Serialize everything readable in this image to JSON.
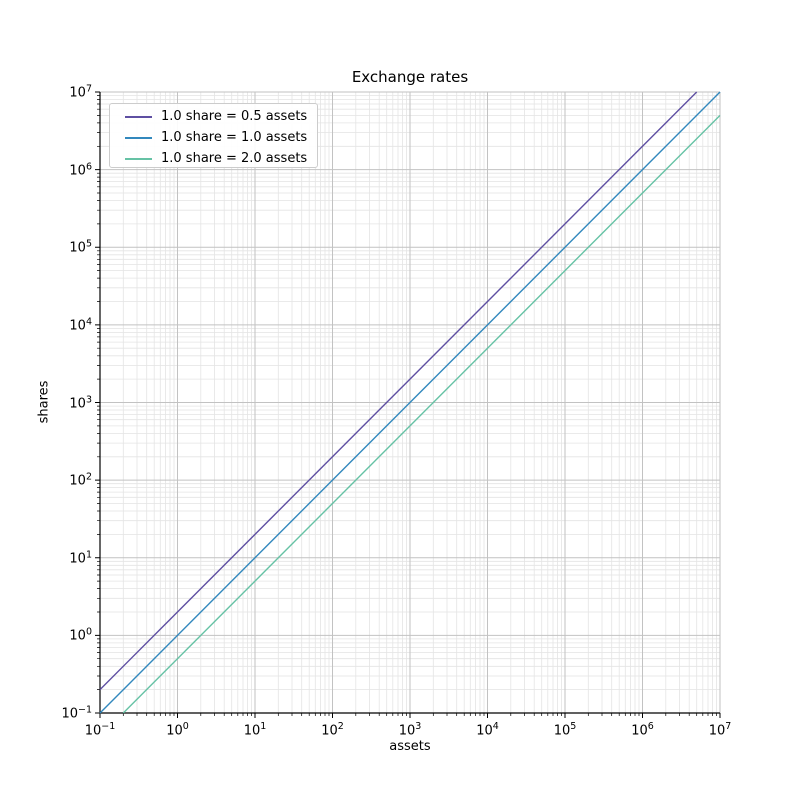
{
  "title": "Exchange rates",
  "axes": {
    "xlabel": "assets",
    "ylabel": "shares"
  },
  "legend_position": "upper left",
  "chart_data": {
    "type": "line",
    "title": "Exchange rates",
    "xlabel": "assets",
    "ylabel": "shares",
    "x_scale": "log",
    "y_scale": "log",
    "xlim": [
      0.1,
      10000000
    ],
    "ylim": [
      0.1,
      10000000
    ],
    "x_tick_exponents": [
      -1,
      0,
      1,
      2,
      3,
      4,
      5,
      6,
      7
    ],
    "y_tick_exponents": [
      -1,
      0,
      1,
      2,
      3,
      4,
      5,
      6,
      7
    ],
    "grid": {
      "which": "both",
      "major_color": "#c2c2c2",
      "minor_color": "#e4e4e4"
    },
    "legend_position": "upper left",
    "series": [
      {
        "name": "1.0 share = 0.5 assets",
        "color": "#5e4fa2",
        "assets_per_share": 0.5,
        "relation": "shares = assets / 0.5",
        "points": [
          [
            0.1,
            0.2
          ],
          [
            5000000,
            10000000
          ]
        ]
      },
      {
        "name": "1.0 share = 1.0 assets",
        "color": "#3288bd",
        "assets_per_share": 1.0,
        "relation": "shares = assets / 1.0",
        "points": [
          [
            0.1,
            0.1
          ],
          [
            10000000,
            10000000
          ]
        ]
      },
      {
        "name": "1.0 share = 2.0 assets",
        "color": "#66c2a5",
        "assets_per_share": 2.0,
        "relation": "shares = assets / 2.0",
        "points": [
          [
            0.2,
            0.1
          ],
          [
            10000000,
            5000000
          ]
        ]
      }
    ]
  }
}
